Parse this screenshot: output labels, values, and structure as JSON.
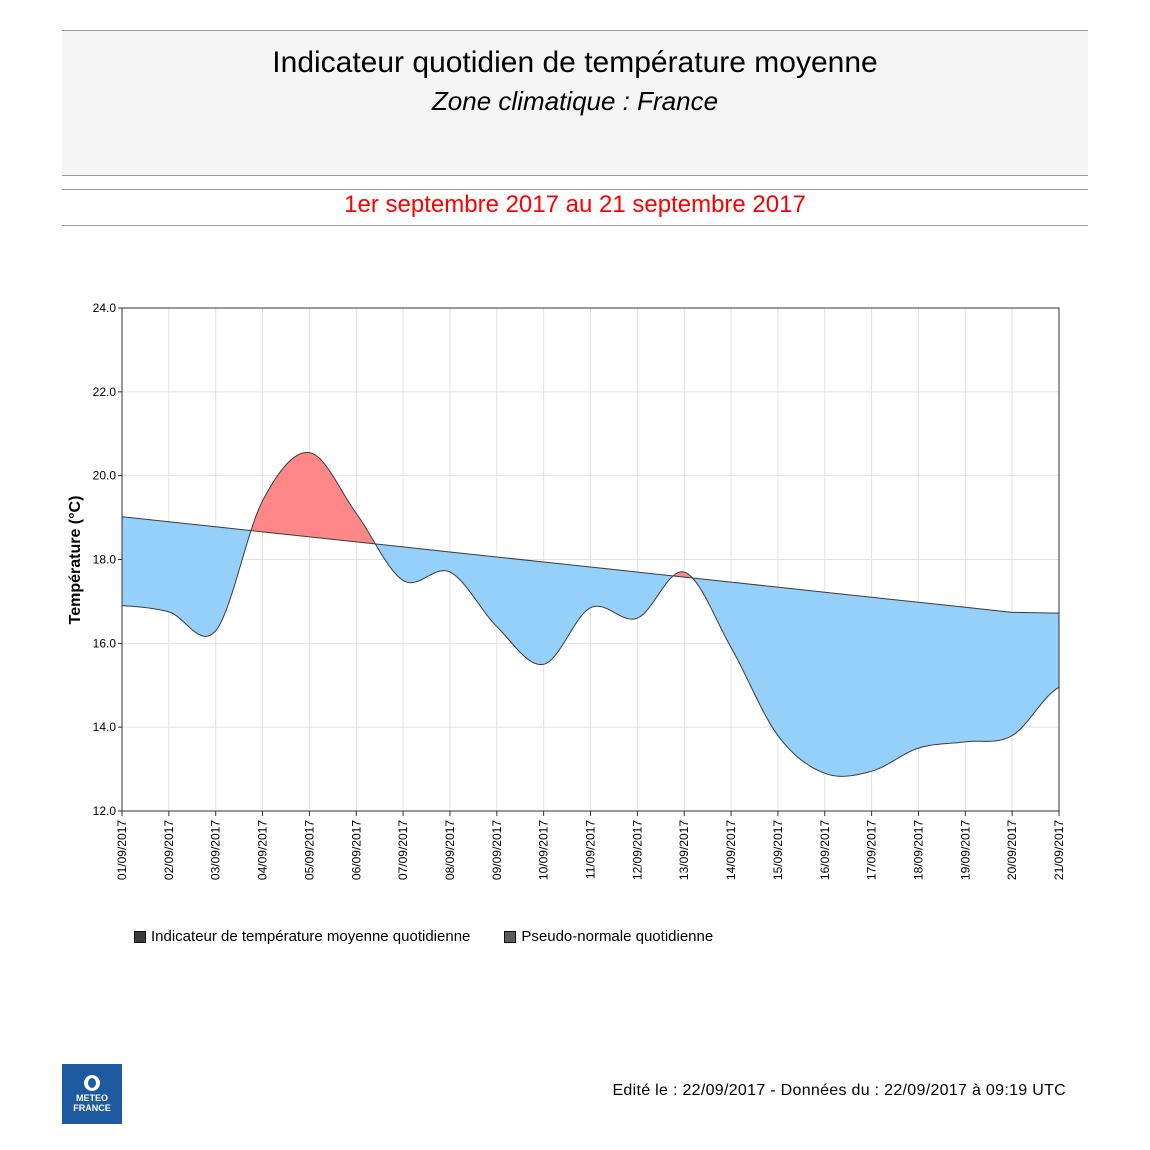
{
  "header": {
    "title": "Indicateur quotidien de température moyenne",
    "subtitle": "Zone climatique : France",
    "period": "1er septembre 2017 au 21 septembre 2017"
  },
  "chart_data": {
    "type": "area",
    "ylabel": "Température (°C)",
    "xlabel": "",
    "ylim": [
      12.0,
      24.0
    ],
    "y_ticks": [
      "12.0",
      "14.0",
      "16.0",
      "18.0",
      "20.0",
      "22.0",
      "24.0"
    ],
    "grid": true,
    "categories": [
      "01/09/2017",
      "02/09/2017",
      "03/09/2017",
      "04/09/2017",
      "05/09/2017",
      "06/09/2017",
      "07/09/2017",
      "08/09/2017",
      "09/09/2017",
      "10/09/2017",
      "11/09/2017",
      "12/09/2017",
      "13/09/2017",
      "14/09/2017",
      "15/09/2017",
      "16/09/2017",
      "17/09/2017",
      "18/09/2017",
      "19/09/2017",
      "20/09/2017",
      "21/09/2017"
    ],
    "series": [
      {
        "name": "Indicateur de température moyenne quotidienne",
        "values": [
          16.9,
          16.75,
          16.3,
          19.4,
          20.55,
          19.1,
          17.5,
          17.7,
          16.4,
          15.5,
          16.85,
          16.6,
          17.7,
          15.9,
          13.8,
          12.9,
          12.95,
          13.5,
          13.65,
          13.8,
          14.95
        ]
      },
      {
        "name": "Pseudo-normale quotidienne",
        "values": [
          19.02,
          18.9,
          18.78,
          18.66,
          18.54,
          18.42,
          18.3,
          18.18,
          18.06,
          17.94,
          17.82,
          17.7,
          17.58,
          17.46,
          17.34,
          17.22,
          17.1,
          16.98,
          16.86,
          16.74,
          16.72
        ]
      }
    ],
    "colors": {
      "above_normal": "#ff8787",
      "below_normal": "#94d0fa",
      "line": "#3b3b3b",
      "swatch": "#3a3a3a",
      "swatch_normal": "#5a5a5a"
    }
  },
  "legend": {
    "indicator_label": "Indicateur de température moyenne quotidienne",
    "normal_label": "Pseudo-normale quotidienne"
  },
  "logo": {
    "line1": "METEO",
    "line2": "FRANCE"
  },
  "footer": {
    "text": "Edité le : 22/09/2017 - Données du : 22/09/2017 à 09:19 UTC"
  }
}
